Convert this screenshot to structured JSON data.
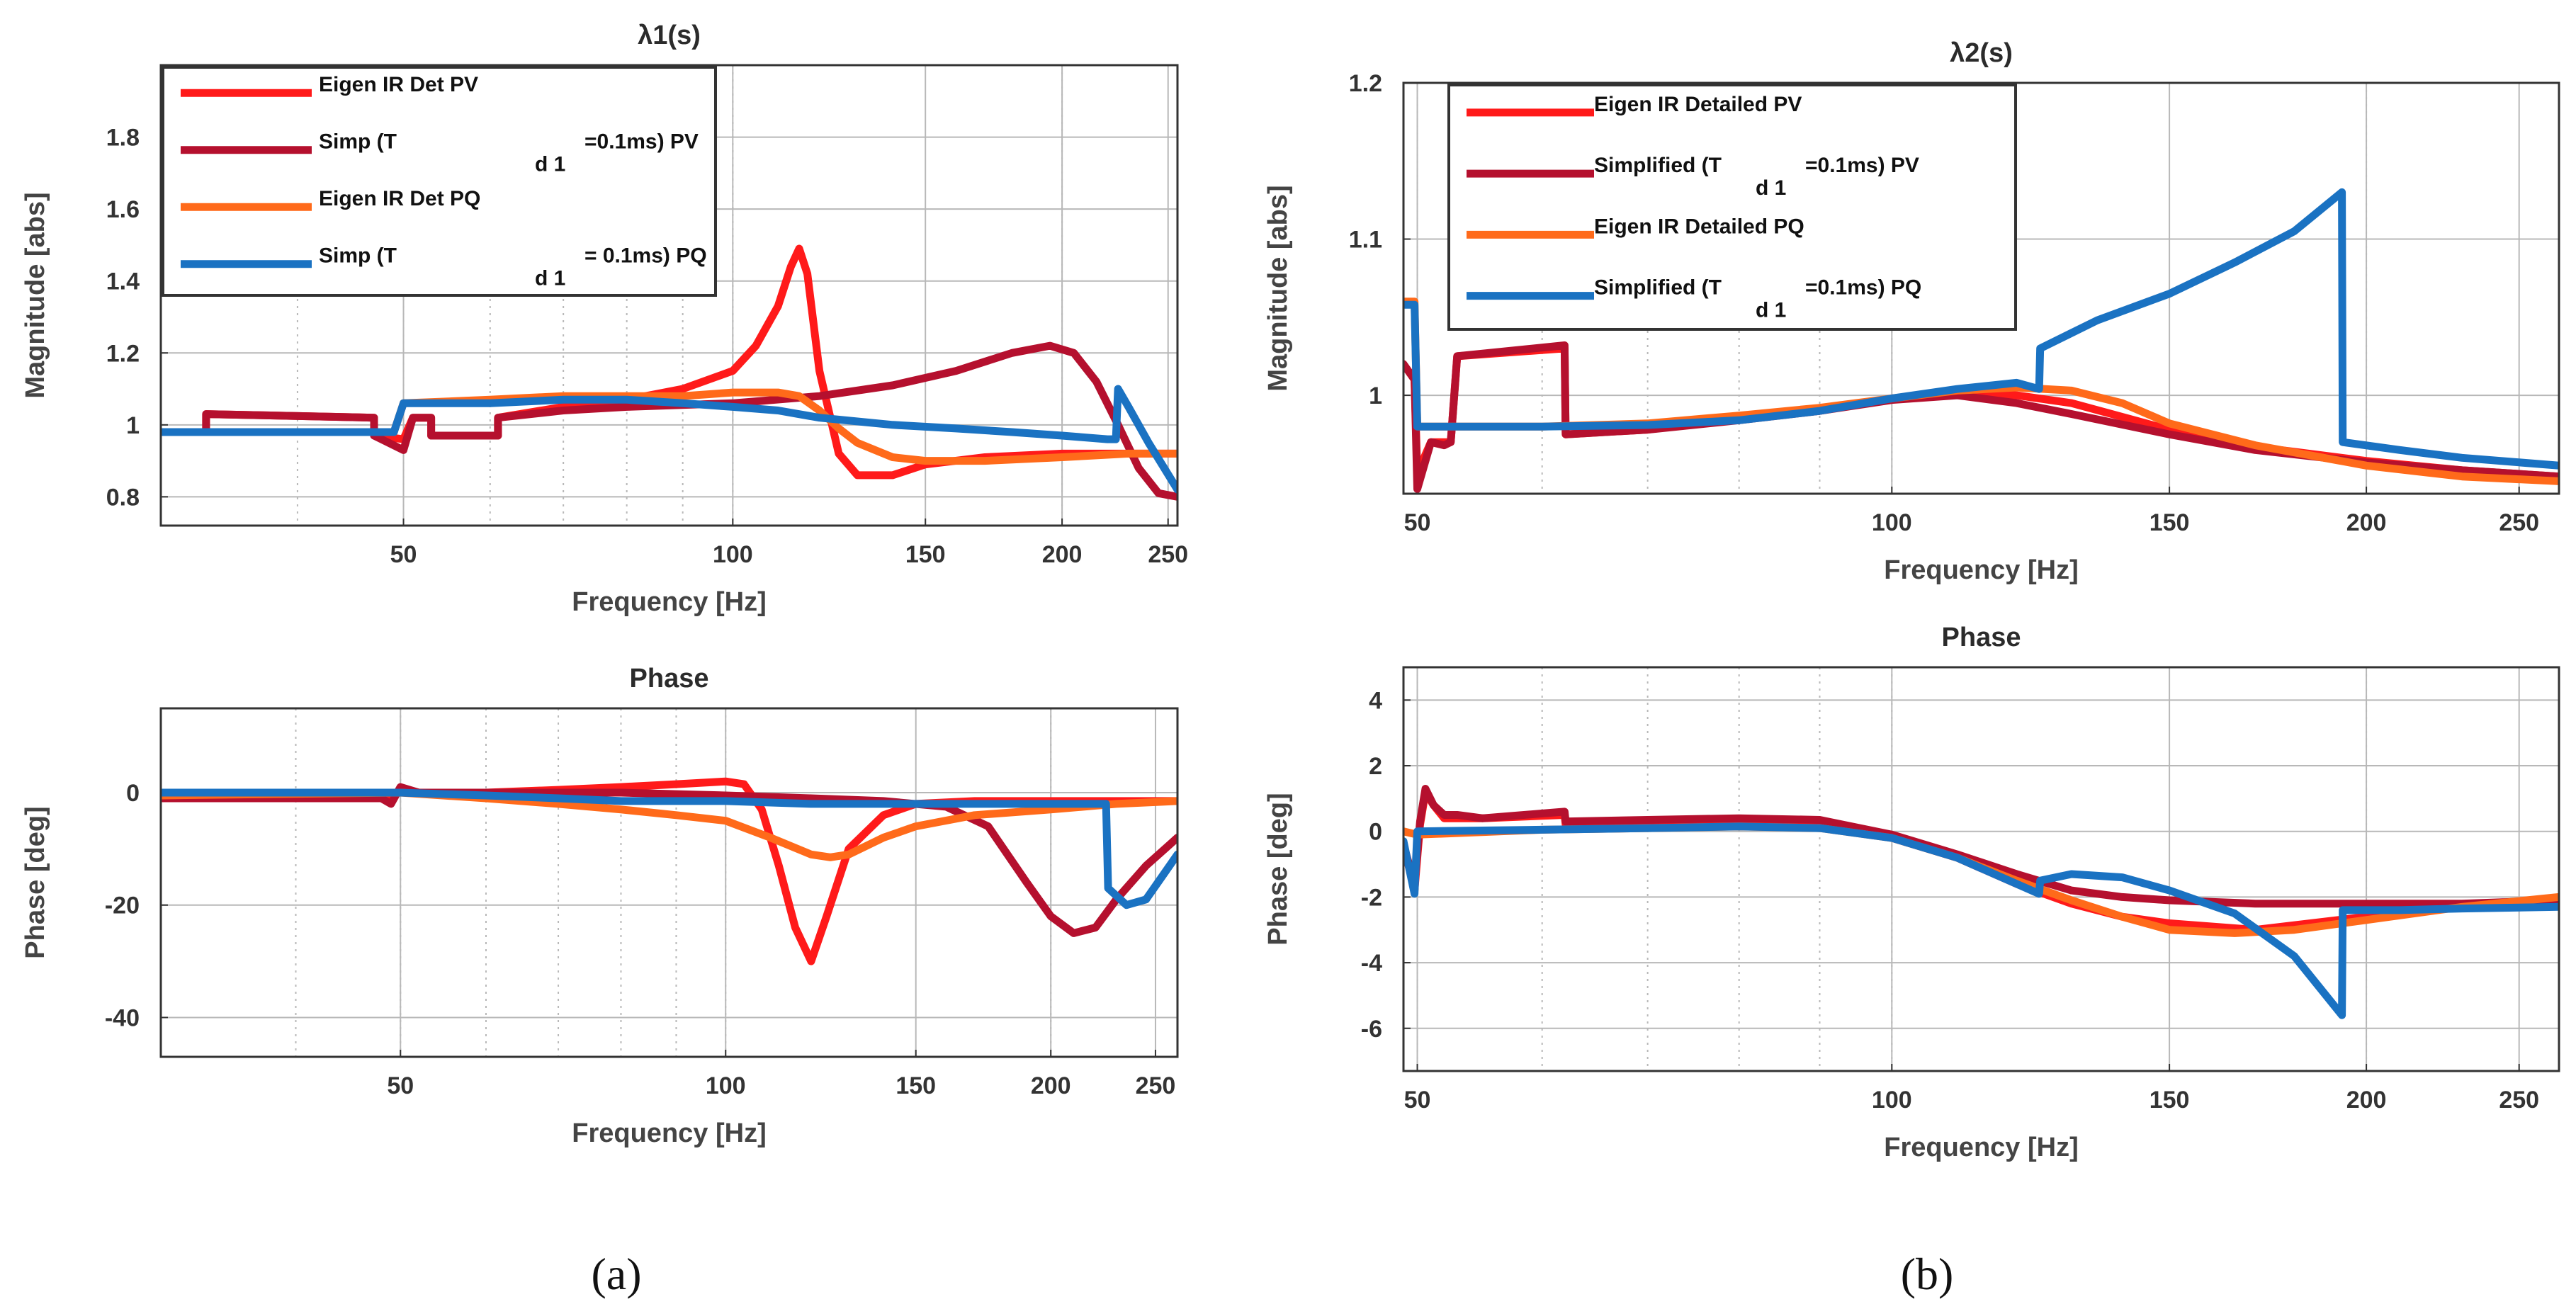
{
  "colors": {
    "eigen_pv": "#ff1a1a",
    "simp_pv": "#b5102e",
    "eigen_pq": "#ff6a1a",
    "simp_pq": "#1a72c2",
    "grid": "#b8b8b8",
    "axis": "#333333"
  },
  "panel_labels": [
    "(a)",
    "(b)"
  ],
  "chart_data": [
    {
      "id": "a-mag",
      "type": "line",
      "title": "λ1(s)",
      "xlabel": "Frequency [Hz]",
      "ylabel": "Magnitude [abs]",
      "xscale": "log",
      "xlim": [
        30,
        255
      ],
      "ylim": [
        0.72,
        2.0
      ],
      "xticks": [
        50,
        100,
        150,
        200,
        250
      ],
      "xticklabels": [
        "50",
        "100",
        "150",
        "200",
        "250"
      ],
      "yticks": [
        0.8,
        1,
        1.2,
        1.4,
        1.6,
        1.8
      ],
      "yticklabels": [
        "0.8",
        "1",
        "1.2",
        "1.4",
        "1.6",
        "1.8"
      ],
      "legend": {
        "location": "top-left",
        "entries": [
          {
            "key": "eigen_pv",
            "text": "Eigen  IR Det PV",
            "sub": ""
          },
          {
            "key": "simp_pv",
            "text": "Simp (T",
            "sub": "d 1",
            "after": "=0.1ms) PV"
          },
          {
            "key": "eigen_pq",
            "text": "Eigen IR Det PQ",
            "sub": ""
          },
          {
            "key": "simp_pq",
            "text": "Simp (T",
            "sub": "d 1",
            "after": "= 0.1ms) PQ"
          }
        ]
      },
      "series": [
        {
          "name": "Eigen  IR Det PV",
          "color_key": "eigen_pv",
          "x": [
            30,
            33,
            33,
            47,
            47,
            50,
            51,
            53,
            53,
            61,
            61,
            70,
            80,
            90,
            100,
            105,
            110,
            113,
            115,
            117,
            120,
            125,
            130,
            140,
            150,
            170,
            200,
            230,
            255
          ],
          "y": [
            0.98,
            0.98,
            1.03,
            1.02,
            0.97,
            0.96,
            1.02,
            1.02,
            0.97,
            0.97,
            1.02,
            1.05,
            1.07,
            1.1,
            1.15,
            1.22,
            1.33,
            1.44,
            1.49,
            1.42,
            1.15,
            0.92,
            0.86,
            0.86,
            0.89,
            0.91,
            0.92,
            0.92,
            0.92
          ]
        },
        {
          "name": "Simp (Td1=0.1ms) PV",
          "color_key": "simp_pv",
          "x": [
            30,
            33,
            33,
            47,
            47,
            50,
            51,
            53,
            53,
            61,
            61,
            70,
            80,
            100,
            120,
            140,
            160,
            180,
            195,
            205,
            215,
            225,
            235,
            245,
            255
          ],
          "y": [
            0.98,
            0.98,
            1.03,
            1.02,
            0.97,
            0.93,
            1.02,
            1.02,
            0.97,
            0.97,
            1.02,
            1.04,
            1.05,
            1.06,
            1.08,
            1.11,
            1.15,
            1.2,
            1.22,
            1.2,
            1.12,
            1.0,
            0.88,
            0.81,
            0.8
          ]
        },
        {
          "name": "Eigen IR Det PQ",
          "color_key": "eigen_pq",
          "x": [
            30,
            49,
            50,
            60,
            70,
            80,
            90,
            100,
            110,
            115,
            120,
            125,
            130,
            140,
            150,
            170,
            200,
            230,
            255
          ],
          "y": [
            0.98,
            0.98,
            1.06,
            1.07,
            1.08,
            1.08,
            1.08,
            1.09,
            1.09,
            1.08,
            1.04,
            0.99,
            0.95,
            0.91,
            0.9,
            0.9,
            0.91,
            0.92,
            0.92
          ]
        },
        {
          "name": "Simp (Td1=0.1ms) PQ",
          "color_key": "simp_pq",
          "x": [
            30,
            49,
            50,
            60,
            70,
            80,
            90,
            100,
            110,
            120,
            140,
            160,
            180,
            200,
            220,
            224,
            225,
            230,
            240,
            255
          ],
          "y": [
            0.98,
            0.98,
            1.06,
            1.06,
            1.07,
            1.07,
            1.06,
            1.05,
            1.04,
            1.02,
            1.0,
            0.99,
            0.98,
            0.97,
            0.96,
            0.96,
            1.1,
            1.05,
            0.95,
            0.82
          ]
        }
      ]
    },
    {
      "id": "a-phase",
      "type": "line",
      "title": "Phase",
      "xlabel": "Frequency [Hz]",
      "ylabel": "Phase [deg]",
      "xscale": "log",
      "xlim": [
        30,
        262
      ],
      "ylim": [
        -47,
        15
      ],
      "xticks": [
        50,
        100,
        150,
        200,
        250
      ],
      "xticklabels": [
        "50",
        "100",
        "150",
        "200",
        "250"
      ],
      "yticks": [
        -40,
        -20,
        0
      ],
      "yticklabels": [
        "-40",
        "-20",
        "0"
      ],
      "series": [
        {
          "name": "Eigen  IR Det PV",
          "color_key": "eigen_pv",
          "x": [
            30,
            40,
            49,
            50,
            52,
            60,
            70,
            80,
            90,
            100,
            104,
            108,
            112,
            116,
            120,
            124,
            130,
            140,
            150,
            170,
            200,
            230,
            262
          ],
          "y": [
            -1,
            -1,
            -1,
            0.5,
            0,
            0,
            0.5,
            1,
            1.5,
            2,
            1.5,
            -3,
            -13,
            -24,
            -30,
            -22,
            -10,
            -4,
            -2,
            -1.5,
            -1.5,
            -1.5,
            -1.5
          ]
        },
        {
          "name": "Simp (Td1=0.1ms) PV",
          "color_key": "simp_pv",
          "x": [
            30,
            48,
            49,
            50,
            52,
            60,
            80,
            100,
            120,
            140,
            160,
            175,
            190,
            200,
            210,
            220,
            230,
            245,
            262
          ],
          "y": [
            -1,
            -1,
            -2,
            1,
            0,
            0,
            0,
            -0.5,
            -1,
            -1.5,
            -2.5,
            -6,
            -16,
            -22,
            -25,
            -24,
            -19,
            -13,
            -8
          ]
        },
        {
          "name": "Eigen IR Det PQ",
          "color_key": "eigen_pq",
          "x": [
            30,
            50,
            60,
            70,
            80,
            90,
            100,
            110,
            120,
            125,
            130,
            140,
            150,
            170,
            200,
            230,
            262
          ],
          "y": [
            -0.5,
            0,
            -1,
            -2,
            -3,
            -4,
            -5,
            -8,
            -11,
            -11.5,
            -11,
            -8,
            -6,
            -4,
            -3,
            -2,
            -1.5
          ]
        },
        {
          "name": "Simp (Td1=0.1ms) PQ",
          "color_key": "simp_pq",
          "x": [
            30,
            50,
            60,
            70,
            80,
            100,
            120,
            150,
            200,
            225,
            226,
            235,
            245,
            262
          ],
          "y": [
            0,
            0,
            -0.5,
            -1,
            -1.5,
            -1.5,
            -2,
            -2,
            -2,
            -2,
            -17,
            -20,
            -19,
            -11
          ]
        }
      ]
    },
    {
      "id": "b-mag",
      "type": "line",
      "title": "λ2(s)",
      "xlabel": "Frequency [Hz]",
      "ylabel": "Magnitude [abs]",
      "xscale": "log",
      "xlim": [
        49,
        265
      ],
      "ylim": [
        0.937,
        1.2
      ],
      "xticks": [
        50,
        100,
        150,
        200,
        250
      ],
      "xticklabels": [
        "50",
        "100",
        "150",
        "200",
        "250"
      ],
      "yticks": [
        1,
        1.1,
        1.2
      ],
      "yticklabels": [
        "1",
        "1.1",
        "1.2"
      ],
      "legend": {
        "location": "top-left",
        "entries": [
          {
            "key": "eigen_pv",
            "text": "Eigen IR Detailed PV",
            "sub": ""
          },
          {
            "key": "simp_pv",
            "text": "Simplified (T",
            "sub": "d 1",
            "after": "=0.1ms) PV"
          },
          {
            "key": "eigen_pq",
            "text": "Eigen IR Detailed PQ",
            "sub": ""
          },
          {
            "key": "simp_pq",
            "text": "Simplified (T",
            "sub": "d 1",
            "after": "=0.1ms) PQ"
          }
        ]
      },
      "series": [
        {
          "name": "Eigen IR Detailed PV",
          "color_key": "eigen_pv",
          "x": [
            49,
            49.8,
            50,
            51,
            52,
            52.5,
            53,
            62,
            62.1,
            70,
            80,
            90,
            100,
            110,
            120,
            130,
            150,
            170,
            200,
            230,
            265
          ],
          "y": [
            1.02,
            1.01,
            0.95,
            0.97,
            0.97,
            0.97,
            1.025,
            1.03,
            0.975,
            0.978,
            0.985,
            0.99,
            0.998,
            1.002,
            1.0,
            0.995,
            0.978,
            0.967,
            0.958,
            0.952,
            0.948
          ]
        },
        {
          "name": "Simplified (Td1=0.1ms) PV",
          "color_key": "simp_pv",
          "x": [
            49,
            49.8,
            50,
            51,
            52,
            52.5,
            53,
            62,
            62.1,
            70,
            80,
            90,
            100,
            110,
            120,
            130,
            150,
            170,
            200,
            230,
            265
          ],
          "y": [
            1.02,
            1.01,
            0.94,
            0.97,
            0.968,
            0.97,
            1.025,
            1.032,
            0.975,
            0.978,
            0.984,
            0.99,
            0.997,
            1.0,
            0.995,
            0.988,
            0.975,
            0.965,
            0.957,
            0.952,
            0.948
          ]
        },
        {
          "name": "Eigen IR Detailed PQ",
          "color_key": "eigen_pq",
          "x": [
            49,
            49.8,
            50,
            60,
            70,
            80,
            90,
            100,
            110,
            120,
            130,
            140,
            150,
            170,
            200,
            230,
            265
          ],
          "y": [
            1.06,
            1.06,
            0.98,
            0.98,
            0.982,
            0.987,
            0.992,
            0.998,
            1.003,
            1.005,
            1.003,
            0.995,
            0.982,
            0.968,
            0.955,
            0.948,
            0.945
          ]
        },
        {
          "name": "Simplified (Td1=0.1ms) PQ",
          "color_key": "simp_pq",
          "x": [
            49,
            49.8,
            50,
            60,
            70,
            80,
            90,
            100,
            110,
            120,
            124,
            124.2,
            135,
            150,
            165,
            180,
            193,
            193.2,
            210,
            230,
            265
          ],
          "y": [
            1.058,
            1.058,
            0.98,
            0.98,
            0.981,
            0.984,
            0.99,
            0.998,
            1.004,
            1.008,
            1.004,
            1.03,
            1.048,
            1.065,
            1.085,
            1.105,
            1.13,
            0.97,
            0.965,
            0.96,
            0.955
          ]
        }
      ]
    },
    {
      "id": "b-phase",
      "type": "line",
      "title": "Phase",
      "xlabel": "Frequency [Hz]",
      "ylabel": "Phase [deg]",
      "xscale": "log",
      "xlim": [
        49,
        265
      ],
      "ylim": [
        -7.3,
        5.0
      ],
      "xticks": [
        50,
        100,
        150,
        200,
        250
      ],
      "xticklabels": [
        "50",
        "100",
        "150",
        "200",
        "250"
      ],
      "yticks": [
        -6,
        -4,
        -2,
        0,
        2,
        4
      ],
      "yticklabels": [
        "-6",
        "-4",
        "-2",
        "0",
        "2",
        "4"
      ],
      "series": [
        {
          "name": "Eigen IR Detailed PV",
          "color_key": "eigen_pv",
          "x": [
            49,
            49.8,
            50.2,
            50.6,
            51.2,
            52,
            53,
            55,
            62,
            62.1,
            70,
            80,
            90,
            100,
            110,
            120,
            130,
            140,
            150,
            170,
            200,
            230,
            265
          ],
          "y": [
            -0.4,
            -1.8,
            0.2,
            1.2,
            0.8,
            0.4,
            0.4,
            0.4,
            0.5,
            0.2,
            0.3,
            0.3,
            0.2,
            -0.2,
            -0.8,
            -1.6,
            -2.2,
            -2.6,
            -2.8,
            -3.0,
            -2.6,
            -2.3,
            -2.1
          ]
        },
        {
          "name": "Simplified (Td1=0.1ms) PV",
          "color_key": "simp_pv",
          "x": [
            49,
            49.8,
            50.2,
            50.6,
            51.2,
            52,
            53,
            55,
            62,
            62.1,
            70,
            80,
            90,
            100,
            110,
            120,
            130,
            140,
            150,
            170,
            200,
            230,
            265
          ],
          "y": [
            -0.4,
            -1.6,
            0.3,
            1.3,
            0.8,
            0.5,
            0.5,
            0.4,
            0.6,
            0.3,
            0.35,
            0.4,
            0.35,
            -0.1,
            -0.7,
            -1.3,
            -1.8,
            -2.0,
            -2.1,
            -2.2,
            -2.2,
            -2.2,
            -2.1
          ]
        },
        {
          "name": "Eigen IR Detailed PQ",
          "color_key": "eigen_pq",
          "x": [
            49,
            50,
            60,
            70,
            80,
            90,
            100,
            110,
            120,
            130,
            140,
            150,
            165,
            180,
            200,
            230,
            265
          ],
          "y": [
            0,
            -0.1,
            0.05,
            0.1,
            0.15,
            0.1,
            -0.2,
            -0.8,
            -1.5,
            -2.1,
            -2.6,
            -3.0,
            -3.1,
            -3.0,
            -2.7,
            -2.3,
            -2.0
          ]
        },
        {
          "name": "Simplified (Td1=0.1ms) PQ",
          "color_key": "simp_pq",
          "x": [
            49,
            49.8,
            50,
            60,
            70,
            80,
            90,
            100,
            110,
            120,
            124,
            124.2,
            130,
            140,
            150,
            165,
            180,
            193,
            193.2,
            210,
            230,
            265
          ],
          "y": [
            -0.3,
            -1.9,
            0,
            0.05,
            0.1,
            0.15,
            0.1,
            -0.2,
            -0.8,
            -1.6,
            -1.9,
            -1.5,
            -1.3,
            -1.4,
            -1.8,
            -2.5,
            -3.8,
            -5.6,
            -2.4,
            -2.4,
            -2.35,
            -2.3
          ]
        }
      ]
    }
  ]
}
